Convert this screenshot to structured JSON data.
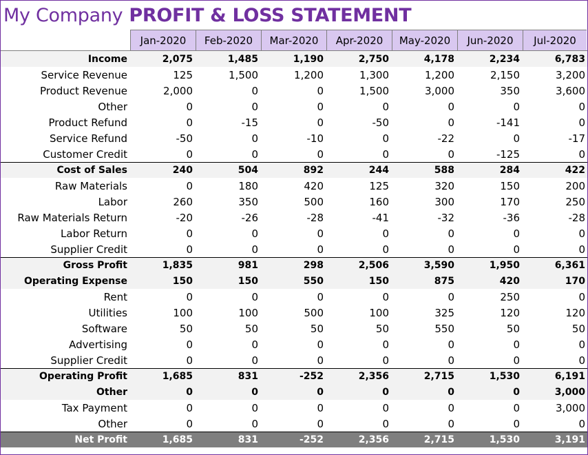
{
  "title": {
    "company": "My Company",
    "statement": "PROFIT & LOSS STATEMENT"
  },
  "months": [
    "Jan-2020",
    "Feb-2020",
    "Mar-2020",
    "Apr-2020",
    "May-2020",
    "Jun-2020",
    "Jul-2020"
  ],
  "rows": [
    {
      "label": "Income",
      "type": "section",
      "values": [
        "2,075",
        "1,485",
        "1,190",
        "2,750",
        "4,178",
        "2,234",
        "6,783"
      ]
    },
    {
      "label": "Service Revenue",
      "type": "item",
      "values": [
        "125",
        "1,500",
        "1,200",
        "1,300",
        "1,200",
        "2,150",
        "3,200"
      ]
    },
    {
      "label": "Product Revenue",
      "type": "item",
      "values": [
        "2,000",
        "0",
        "0",
        "1,500",
        "3,000",
        "350",
        "3,600"
      ]
    },
    {
      "label": "Other",
      "type": "item",
      "values": [
        "0",
        "0",
        "0",
        "0",
        "0",
        "0",
        "0"
      ]
    },
    {
      "label": "Product Refund",
      "type": "item",
      "values": [
        "0",
        "-15",
        "0",
        "-50",
        "0",
        "-141",
        "0"
      ]
    },
    {
      "label": "Service Refund",
      "type": "item",
      "values": [
        "-50",
        "0",
        "-10",
        "0",
        "-22",
        "0",
        "-17"
      ]
    },
    {
      "label": "Customer Credit",
      "type": "item",
      "values": [
        "0",
        "0",
        "0",
        "0",
        "0",
        "-125",
        "0"
      ]
    },
    {
      "label": "Cost of Sales",
      "type": "section",
      "values": [
        "240",
        "504",
        "892",
        "244",
        "588",
        "284",
        "422"
      ]
    },
    {
      "label": "Raw Materials",
      "type": "item",
      "values": [
        "0",
        "180",
        "420",
        "125",
        "320",
        "150",
        "200"
      ]
    },
    {
      "label": "Labor",
      "type": "item",
      "values": [
        "260",
        "350",
        "500",
        "160",
        "300",
        "170",
        "250"
      ]
    },
    {
      "label": "Raw Materials Return",
      "type": "item",
      "values": [
        "-20",
        "-26",
        "-28",
        "-41",
        "-32",
        "-36",
        "-28"
      ]
    },
    {
      "label": "Labor Return",
      "type": "item",
      "values": [
        "0",
        "0",
        "0",
        "0",
        "0",
        "0",
        "0"
      ]
    },
    {
      "label": "Supplier Credit",
      "type": "item",
      "values": [
        "0",
        "0",
        "0",
        "0",
        "0",
        "0",
        "0"
      ]
    },
    {
      "label": "Gross Profit",
      "type": "section",
      "values": [
        "1,835",
        "981",
        "298",
        "2,506",
        "3,590",
        "1,950",
        "6,361"
      ]
    },
    {
      "label": "Operating Expense",
      "type": "section",
      "values": [
        "150",
        "150",
        "550",
        "150",
        "875",
        "420",
        "170"
      ]
    },
    {
      "label": "Rent",
      "type": "item",
      "values": [
        "0",
        "0",
        "0",
        "0",
        "0",
        "250",
        "0"
      ]
    },
    {
      "label": "Utilities",
      "type": "item",
      "values": [
        "100",
        "100",
        "500",
        "100",
        "325",
        "120",
        "120"
      ]
    },
    {
      "label": "Software",
      "type": "item",
      "values": [
        "50",
        "50",
        "50",
        "50",
        "550",
        "50",
        "50"
      ]
    },
    {
      "label": "Advertising",
      "type": "item",
      "values": [
        "0",
        "0",
        "0",
        "0",
        "0",
        "0",
        "0"
      ]
    },
    {
      "label": "Supplier Credit",
      "type": "item",
      "values": [
        "0",
        "0",
        "0",
        "0",
        "0",
        "0",
        "0"
      ]
    },
    {
      "label": "Operating Profit",
      "type": "section",
      "values": [
        "1,685",
        "831",
        "-252",
        "2,356",
        "2,715",
        "1,530",
        "6,191"
      ]
    },
    {
      "label": "Other",
      "type": "section",
      "values": [
        "0",
        "0",
        "0",
        "0",
        "0",
        "0",
        "3,000"
      ]
    },
    {
      "label": "Tax Payment",
      "type": "item",
      "values": [
        "0",
        "0",
        "0",
        "0",
        "0",
        "0",
        "3,000"
      ]
    },
    {
      "label": "Other",
      "type": "item",
      "values": [
        "0",
        "0",
        "0",
        "0",
        "0",
        "0",
        "0"
      ]
    },
    {
      "label": "Net Profit",
      "type": "total",
      "values": [
        "1,685",
        "831",
        "-252",
        "2,356",
        "2,715",
        "1,530",
        "3,191"
      ]
    }
  ]
}
